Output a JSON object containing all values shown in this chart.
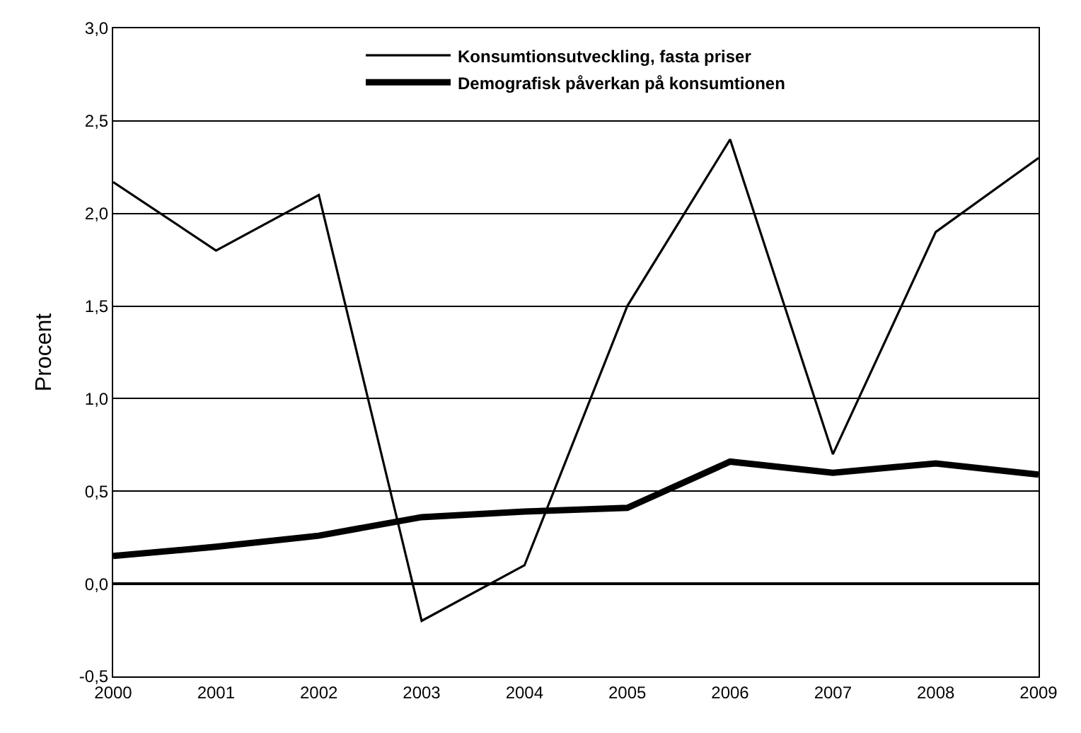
{
  "chart_data": {
    "type": "line",
    "ylabel": "Procent",
    "x": [
      2000,
      2001,
      2002,
      2003,
      2004,
      2005,
      2006,
      2007,
      2008,
      2009
    ],
    "series": [
      {
        "name": "Konsumtionsutveckling, fasta priser",
        "color": "#000000",
        "values": [
          2.17,
          1.8,
          2.1,
          -0.2,
          0.1,
          1.5,
          2.4,
          0.7,
          1.9,
          2.3
        ]
      },
      {
        "name": "Demografisk påverkan på konsumtionen",
        "color": "#000000",
        "values": [
          0.15,
          0.2,
          0.26,
          0.36,
          0.39,
          0.41,
          0.66,
          0.6,
          0.65,
          0.59
        ]
      }
    ],
    "xlim": [
      2000,
      2009
    ],
    "xticks": [
      2000,
      2001,
      2002,
      2003,
      2004,
      2005,
      2006,
      2007,
      2008,
      2009
    ],
    "ylim": [
      -0.5,
      3.0
    ],
    "yticks": [
      {
        "value": -0.5,
        "label": "-0,5"
      },
      {
        "value": 0,
        "label": "0,0"
      },
      {
        "value": 0.5,
        "label": "0,5"
      },
      {
        "value": 1.0,
        "label": "1,0"
      },
      {
        "value": 1.5,
        "label": "1,5"
      },
      {
        "value": 2.0,
        "label": "2,0"
      },
      {
        "value": 2.5,
        "label": "2,5"
      },
      {
        "value": 3.0,
        "label": "3,0"
      }
    ],
    "grid": "y",
    "legend": "top",
    "marker": "none",
    "line_style": "solid"
  }
}
